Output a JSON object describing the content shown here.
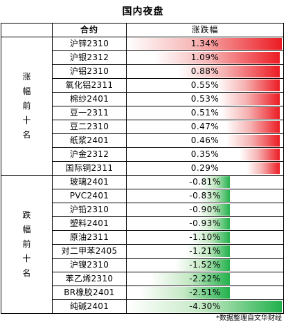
{
  "title": "国内夜盘",
  "header": {
    "contract": "合约",
    "change": "涨跌幅"
  },
  "groups": [
    {
      "label": "涨幅前十名",
      "direction": "up",
      "rows": [
        {
          "name": "沪锌2310",
          "change": "1.34%",
          "value": 1.34
        },
        {
          "name": "沪银2312",
          "change": "1.09%",
          "value": 1.09
        },
        {
          "name": "沪铝2310",
          "change": "0.88%",
          "value": 0.88
        },
        {
          "name": "氧化铝2311",
          "change": "0.55%",
          "value": 0.55
        },
        {
          "name": "棉纱2401",
          "change": "0.53%",
          "value": 0.53
        },
        {
          "name": "豆一2311",
          "change": "0.51%",
          "value": 0.51
        },
        {
          "name": "豆二2310",
          "change": "0.47%",
          "value": 0.47
        },
        {
          "name": "纸浆2401",
          "change": "0.46%",
          "value": 0.46
        },
        {
          "name": "沪金2312",
          "change": "0.35%",
          "value": 0.35
        },
        {
          "name": "国际铜2311",
          "change": "0.29%",
          "value": 0.29
        }
      ]
    },
    {
      "label": "跌幅前十名",
      "direction": "down",
      "rows": [
        {
          "name": "玻璃2401",
          "change": "-0.81%",
          "value": -0.81
        },
        {
          "name": "PVC2401",
          "change": "-0.83%",
          "value": -0.83
        },
        {
          "name": "沪铅2310",
          "change": "-0.90%",
          "value": -0.9
        },
        {
          "name": "塑料2401",
          "change": "-0.93%",
          "value": -0.93
        },
        {
          "name": "原油2311",
          "change": "-1.10%",
          "value": -1.1
        },
        {
          "name": "对二甲苯2405",
          "change": "-1.21%",
          "value": -1.21
        },
        {
          "name": "沪镍2310",
          "change": "-1.52%",
          "value": -1.52
        },
        {
          "name": "苯乙烯2310",
          "change": "-2.22%",
          "value": -2.22
        },
        {
          "name": "BR橡胶2401",
          "change": "-2.51%",
          "value": -2.51
        },
        {
          "name": "纯碱2401",
          "change": "-4.30%",
          "value": -4.3
        }
      ]
    }
  ],
  "colors": {
    "up": "#ec1c24",
    "down": "#22b14c"
  },
  "footnote": "*数据整理自文华财经"
}
